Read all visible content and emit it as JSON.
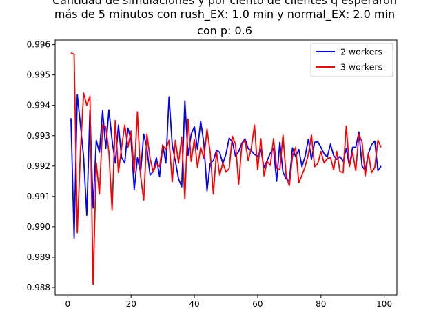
{
  "chart_data": {
    "type": "line",
    "title_lines": [
      "Cantidad de simulaciones y por ciento de clientes q esperaron",
      "más de 5 minutos con rush_EX: 1.0 min y normal_EX: 2.0 min",
      "con p: 0.6"
    ],
    "xlabel": "",
    "ylabel": "",
    "xlim": [
      -4,
      104
    ],
    "ylim": [
      0.98775,
      0.99615
    ],
    "xticks": [
      0,
      20,
      40,
      60,
      80,
      100
    ],
    "xtick_labels": [
      "0",
      "20",
      "40",
      "60",
      "80",
      "100"
    ],
    "yticks": [
      0.988,
      0.989,
      0.99,
      0.991,
      0.992,
      0.993,
      0.994,
      0.995,
      0.996
    ],
    "ytick_labels": [
      "0.988",
      "0.989",
      "0.990",
      "0.991",
      "0.992",
      "0.993",
      "0.994",
      "0.995",
      "0.996"
    ],
    "grid": false,
    "legend_position": "top-right",
    "series": [
      {
        "name": "2 workers",
        "color": "#0000ff",
        "x": [
          1,
          2,
          3,
          4,
          5,
          6,
          7,
          8,
          9,
          10,
          11,
          12,
          13,
          14,
          15,
          16,
          17,
          18,
          19,
          20,
          21,
          22,
          23,
          24,
          25,
          26,
          27,
          28,
          29,
          30,
          31,
          32,
          33,
          34,
          35,
          36,
          37,
          38,
          39,
          40,
          41,
          42,
          43,
          44,
          45,
          46,
          47,
          48,
          49,
          50,
          51,
          52,
          53,
          54,
          55,
          56,
          57,
          58,
          59,
          60,
          61,
          62,
          63,
          64,
          65,
          66,
          67,
          68,
          69,
          70,
          71,
          72,
          73,
          74,
          75,
          76,
          77,
          78,
          79,
          80,
          81,
          82,
          83,
          84,
          85,
          86,
          87,
          88,
          89,
          90,
          91,
          92,
          93,
          94,
          95,
          96,
          97,
          98,
          99
        ],
        "y": [
          0.99358,
          0.98962,
          0.99435,
          0.99335,
          0.9923,
          0.99038,
          0.99385,
          0.99062,
          0.99285,
          0.99245,
          0.99382,
          0.99258,
          0.99385,
          0.99285,
          0.9921,
          0.99335,
          0.99228,
          0.9921,
          0.99325,
          0.99285,
          0.99122,
          0.99228,
          0.99178,
          0.99305,
          0.99258,
          0.9917,
          0.99182,
          0.99228,
          0.99165,
          0.9927,
          0.9921,
          0.99428,
          0.9927,
          0.99215,
          0.99158,
          0.99132,
          0.99415,
          0.99235,
          0.99305,
          0.9933,
          0.99255,
          0.99348,
          0.99275,
          0.99118,
          0.99208,
          0.99218,
          0.99252,
          0.99245,
          0.99208,
          0.9924,
          0.99292,
          0.9928,
          0.99232,
          0.99248,
          0.99275,
          0.9929,
          0.99258,
          0.9925,
          0.99238,
          0.99232,
          0.99255,
          0.99195,
          0.99218,
          0.99242,
          0.99258,
          0.9915,
          0.99278,
          0.9918,
          0.99158,
          0.9915,
          0.9926,
          0.9923,
          0.99255,
          0.99198,
          0.99232,
          0.99288,
          0.99222,
          0.99278,
          0.9928,
          0.99262,
          0.9924,
          0.9923,
          0.99272,
          0.99235,
          0.99222,
          0.99232,
          0.99215,
          0.99258,
          0.992,
          0.99262,
          0.99262,
          0.99312,
          0.992,
          0.99185,
          0.99242,
          0.9927,
          0.99282,
          0.99185,
          0.992
        ]
      },
      {
        "name": "3 workers",
        "color": "#ff0000",
        "x": [
          1,
          2,
          3,
          4,
          5,
          6,
          7,
          8,
          9,
          10,
          11,
          12,
          13,
          14,
          15,
          16,
          17,
          18,
          19,
          20,
          21,
          22,
          23,
          24,
          25,
          26,
          27,
          28,
          29,
          30,
          31,
          32,
          33,
          34,
          35,
          36,
          37,
          38,
          39,
          40,
          41,
          42,
          43,
          44,
          45,
          46,
          47,
          48,
          49,
          50,
          51,
          52,
          53,
          54,
          55,
          56,
          57,
          58,
          59,
          60,
          61,
          62,
          63,
          64,
          65,
          66,
          67,
          68,
          69,
          70,
          71,
          72,
          73,
          74,
          75,
          76,
          77,
          78,
          79,
          80,
          81,
          82,
          83,
          84,
          85,
          86,
          87,
          88,
          89,
          90,
          91,
          92,
          93,
          94,
          95,
          96,
          97,
          98,
          99
        ],
        "y": [
          0.99572,
          0.99568,
          0.9898,
          0.9925,
          0.9944,
          0.994,
          0.9943,
          0.9881,
          0.9921,
          0.99108,
          0.99335,
          0.9933,
          0.99245,
          0.99055,
          0.9935,
          0.99178,
          0.99262,
          0.99335,
          0.99262,
          0.99315,
          0.99178,
          0.99378,
          0.99168,
          0.99088,
          0.99305,
          0.99225,
          0.9918,
          0.99208,
          0.99198,
          0.99268,
          0.99255,
          0.99285,
          0.99148,
          0.99285,
          0.9921,
          0.99295,
          0.99092,
          0.99355,
          0.99215,
          0.99288,
          0.99195,
          0.99262,
          0.99225,
          0.99322,
          0.99245,
          0.99108,
          0.99248,
          0.9917,
          0.9921,
          0.9918,
          0.99192,
          0.99298,
          0.99272,
          0.9914,
          0.9927,
          0.99285,
          0.99218,
          0.9926,
          0.99335,
          0.99188,
          0.9929,
          0.99168,
          0.99215,
          0.99202,
          0.9929,
          0.99192,
          0.99188,
          0.99302,
          0.99168,
          0.99135,
          0.99232,
          0.99262,
          0.99145,
          0.9917,
          0.99198,
          0.99238,
          0.99302,
          0.99198,
          0.99208,
          0.99248,
          0.9921,
          0.99225,
          0.99228,
          0.99188,
          0.99248,
          0.99182,
          0.99178,
          0.99332,
          0.99198,
          0.99245,
          0.99185,
          0.99305,
          0.99278,
          0.99168,
          0.99242,
          0.99178,
          0.99195,
          0.99285,
          0.99262
        ]
      }
    ]
  }
}
